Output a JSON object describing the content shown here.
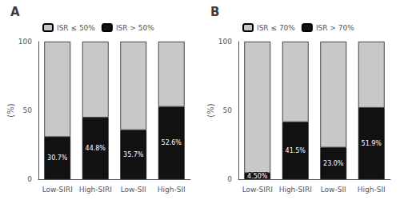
{
  "chart_data": [
    {
      "type": "bar",
      "title": "A",
      "ylabel": "(%)",
      "stacked": true,
      "legend": "upper left",
      "grid": false,
      "categories": [
        "Low-SIRI",
        "High-SIRI",
        "Low-SII",
        "High-SII"
      ],
      "series": [
        {
          "name": "ISR > 50%",
          "color": "#111111",
          "values": [
            30.7,
            44.8,
            35.7,
            52.6
          ],
          "data_labels": true,
          "value_labels": [
            "30.7%",
            "44.8%",
            "35.7%",
            "52.6%"
          ]
        },
        {
          "name": "ISR ≤ 50%",
          "color": "#c8c8c8",
          "values": [
            69.3,
            55.2,
            64.3,
            47.4
          ]
        }
      ],
      "ylim": [
        0,
        100
      ],
      "yticks": [
        0,
        50,
        100
      ]
    },
    {
      "type": "bar",
      "title": "B",
      "ylabel": "(%)",
      "stacked": true,
      "legend": "upper left",
      "grid": false,
      "categories": [
        "Low-SIRI",
        "High-SIRI",
        "Low-SII",
        "High-SII"
      ],
      "series": [
        {
          "name": "ISR > 70%",
          "color": "#111111",
          "values": [
            4.5,
            41.5,
            23.0,
            51.9
          ],
          "data_labels": true,
          "value_labels": [
            "4.50%",
            "41.5%",
            "23.0%",
            "51.9%"
          ]
        },
        {
          "name": "ISR ≤ 70%",
          "color": "#c8c8c8",
          "values": [
            95.5,
            58.5,
            77.0,
            48.1
          ]
        }
      ],
      "ylim": [
        0,
        100
      ],
      "yticks": [
        0,
        50,
        100
      ]
    }
  ]
}
